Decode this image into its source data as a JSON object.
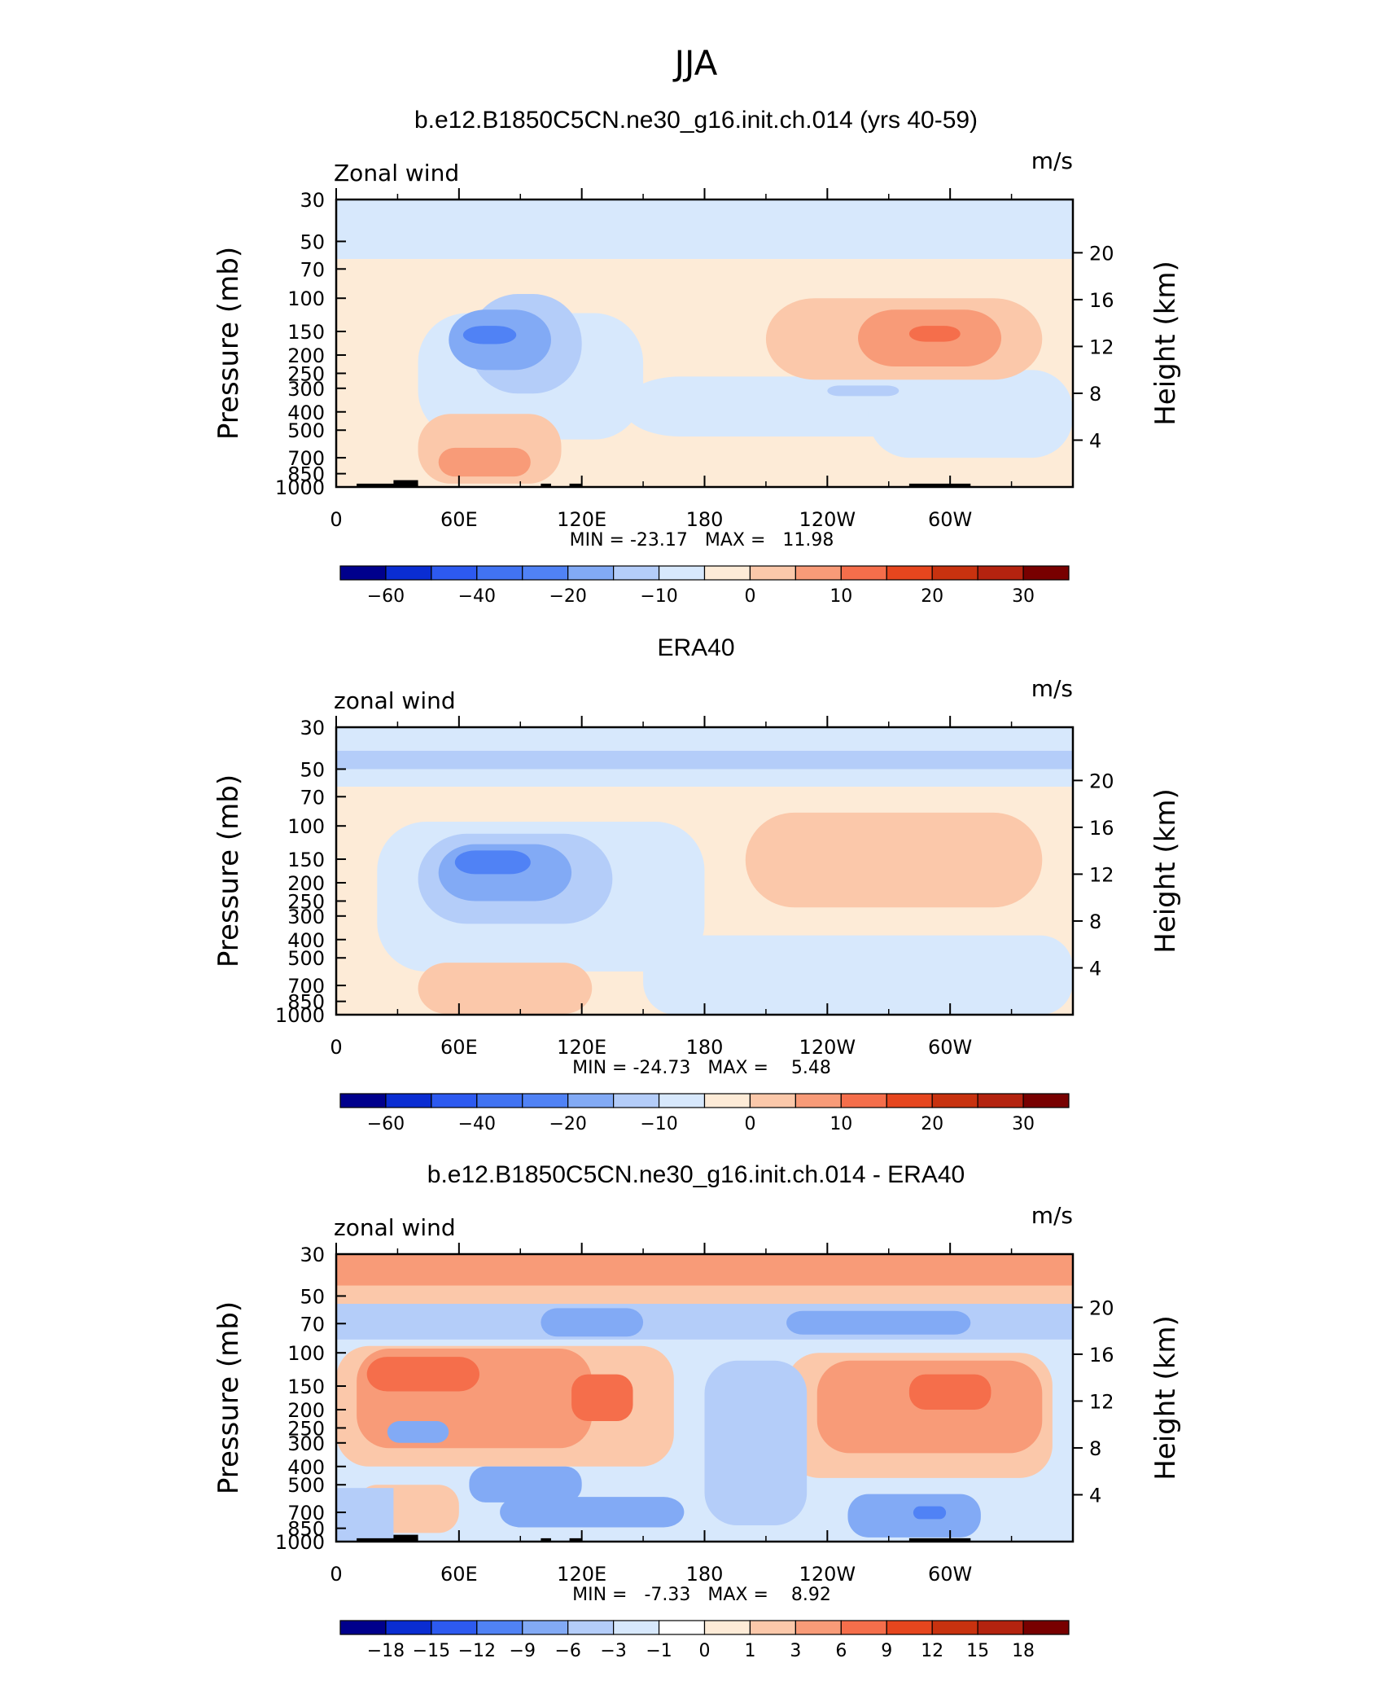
{
  "figure": {
    "title": "JJA"
  },
  "common": {
    "left_axis_label": "Pressure (mb)",
    "right_axis_label": "Height (km)",
    "units": "m/s",
    "pressure_ticks": [
      "30",
      "50",
      "70",
      "100",
      "150",
      "200",
      "250",
      "300",
      "400",
      "500",
      "700",
      "850",
      "1000"
    ],
    "height_ticks": [
      "20",
      "16",
      "12",
      "8",
      "4"
    ],
    "longitude_ticks": [
      "0",
      "60E",
      "120E",
      "180",
      "120W",
      "60W"
    ],
    "palette": [
      "#00008c",
      "#0a2dd2",
      "#2d5af0",
      "#5082f5",
      "#82aaf5",
      "#b4cdf9",
      "#d7e8fc",
      "#fdebd7",
      "#fbc8aa",
      "#f89b78",
      "#f56e4b",
      "#e6461e",
      "#b4230f",
      "#780000"
    ]
  },
  "chart_data": [
    {
      "type": "heatmap",
      "title": "b.e12.B1850C5CN.ne30_g16.init.ch.014 (yrs 40-59)",
      "variable_label": "Zonal wind",
      "units": "m/s",
      "xlabel": "",
      "ylabel": "Pressure (mb)",
      "y2label": "Height (km)",
      "min_max_label": "MIN = -23.17   MAX =   11.98",
      "min": -23.17,
      "max": 11.98,
      "colorbar_labels": [
        "-60",
        "-40",
        "-20",
        "-10",
        "0",
        "10",
        "20",
        "30"
      ],
      "features": [
        {
          "lon": 70,
          "p": 150,
          "value": -23,
          "kind": "jet core"
        },
        {
          "lon": 295,
          "p": 150,
          "value": 12,
          "kind": "jet core"
        },
        {
          "lon": 60,
          "p": 700,
          "value": 8,
          "kind": "low-level westerlies"
        }
      ]
    },
    {
      "type": "heatmap",
      "title": "ERA40",
      "variable_label": "zonal wind",
      "units": "m/s",
      "xlabel": "",
      "ylabel": "Pressure (mb)",
      "y2label": "Height (km)",
      "min_max_label": "MIN = -24.73   MAX =    5.48",
      "min": -24.73,
      "max": 5.48,
      "colorbar_labels": [
        "-60",
        "-40",
        "-20",
        "-10",
        "0",
        "10",
        "20",
        "30"
      ],
      "features": [
        {
          "lon": 75,
          "p": 150,
          "value": -24,
          "kind": "jet core"
        },
        {
          "lon": 270,
          "p": 120,
          "value": 5,
          "kind": "westerly maximum"
        }
      ]
    },
    {
      "type": "heatmap",
      "title": "b.e12.B1850C5CN.ne30_g16.init.ch.014 - ERA40",
      "variable_label": "zonal wind",
      "units": "m/s",
      "xlabel": "",
      "ylabel": "Pressure (mb)",
      "y2label": "Height (km)",
      "min_max_label": "MIN =   -7.33   MAX =    8.92",
      "min": -7.33,
      "max": 8.92,
      "colorbar_labels": [
        "-18",
        "-15",
        "-12",
        "-9",
        "-6",
        "-3",
        "-1",
        "0",
        "1",
        "3",
        "6",
        "9",
        "12",
        "15",
        "18"
      ],
      "features": [
        {
          "lon": 40,
          "p": 110,
          "value": 8,
          "kind": "positive bias"
        },
        {
          "lon": 295,
          "p": 150,
          "value": 9,
          "kind": "positive bias"
        },
        {
          "lon": 110,
          "p": 150,
          "value": 6,
          "kind": "positive bias"
        },
        {
          "lon": 290,
          "p": 700,
          "value": -7,
          "kind": "negative bias"
        },
        {
          "lon": 0,
          "p": 35,
          "value": 6,
          "kind": "positive bias"
        }
      ]
    }
  ]
}
